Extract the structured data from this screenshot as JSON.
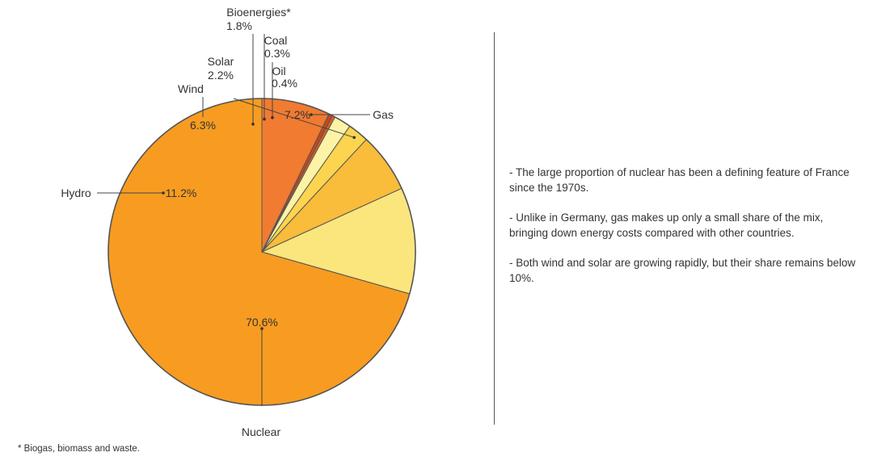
{
  "chart_data": {
    "type": "pie",
    "slices": [
      {
        "name": "Nuclear",
        "value": 70.6,
        "label": "70.6%",
        "color": "#f79c21"
      },
      {
        "name": "Hydro",
        "value": 11.2,
        "label": "11.2%",
        "color": "#fbe67e"
      },
      {
        "name": "Wind",
        "value": 6.3,
        "label": "6.3%",
        "color": "#f9bc3b"
      },
      {
        "name": "Solar",
        "value": 2.2,
        "label": "2.2%",
        "color": "#fcd44f"
      },
      {
        "name": "Bioenergies*",
        "value": 1.8,
        "label": "1.8%",
        "color": "#fdf3a6"
      },
      {
        "name": "Coal",
        "value": 0.3,
        "label": "0.3%",
        "color": "#e0611f"
      },
      {
        "name": "Oil",
        "value": 0.4,
        "label": "0.4%",
        "color": "#c9461a"
      },
      {
        "name": "Gas",
        "value": 7.2,
        "label": "7.2%",
        "color": "#f07b31"
      }
    ]
  },
  "notes": [
    "- The large proportion of nuclear has been a defining feature of France since the 1970s.",
    "- Unlike in Germany, gas makes up only a small share of the mix, bringing down energy costs compared with other countries.",
    "- Both wind and solar are growing rapidly, but their share remains below 10%."
  ],
  "footnote": "* Biogas, biomass and waste."
}
